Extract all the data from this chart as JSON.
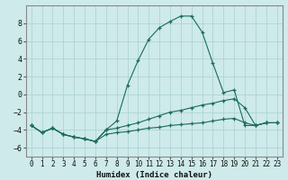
{
  "xlabel": "Humidex (Indice chaleur)",
  "bg_color": "#ceeaea",
  "grid_color": "#aed4d4",
  "line_color": "#1a6b5a",
  "xlim": [
    -0.5,
    23.5
  ],
  "ylim": [
    -7,
    10
  ],
  "yticks": [
    -6,
    -4,
    -2,
    0,
    2,
    4,
    6,
    8
  ],
  "xtick_labels": [
    "0",
    "1",
    "2",
    "3",
    "4",
    "5",
    "6",
    "7",
    "8",
    "9",
    "10",
    "11",
    "12",
    "13",
    "14",
    "15",
    "16",
    "17",
    "18",
    "19",
    "20",
    "21",
    "22",
    "23"
  ],
  "series": [
    {
      "x": [
        0,
        1,
        2,
        3,
        4,
        5,
        6,
        7,
        8,
        9,
        10,
        11,
        12,
        13,
        14,
        15,
        16,
        17,
        18,
        19,
        20,
        21,
        22,
        23
      ],
      "y": [
        -3.5,
        -4.3,
        -3.8,
        -4.5,
        -4.8,
        -5.0,
        -5.3,
        -4.0,
        -3.0,
        1.0,
        3.8,
        6.2,
        7.5,
        8.2,
        8.8,
        8.8,
        7.0,
        3.5,
        0.2,
        0.5,
        -3.5,
        -3.5,
        -3.2,
        -3.2
      ]
    },
    {
      "x": [
        0,
        1,
        2,
        3,
        4,
        5,
        6,
        7,
        8,
        9,
        10,
        11,
        12,
        13,
        14,
        15,
        16,
        17,
        18,
        19,
        20,
        21,
        22,
        23
      ],
      "y": [
        -3.5,
        -4.3,
        -3.8,
        -4.5,
        -4.8,
        -5.0,
        -5.3,
        -4.0,
        -3.8,
        -3.5,
        -3.2,
        -2.8,
        -2.4,
        -2.0,
        -1.8,
        -1.5,
        -1.2,
        -1.0,
        -0.7,
        -0.5,
        -1.5,
        -3.5,
        -3.2,
        -3.2
      ]
    },
    {
      "x": [
        0,
        1,
        2,
        3,
        4,
        5,
        6,
        7,
        8,
        9,
        10,
        11,
        12,
        13,
        14,
        15,
        16,
        17,
        18,
        19,
        20,
        21,
        22,
        23
      ],
      "y": [
        -3.5,
        -4.3,
        -3.8,
        -4.5,
        -4.8,
        -5.0,
        -5.3,
        -4.5,
        -4.3,
        -4.2,
        -4.0,
        -3.8,
        -3.7,
        -3.5,
        -3.4,
        -3.3,
        -3.2,
        -3.0,
        -2.8,
        -2.7,
        -3.2,
        -3.5,
        -3.2,
        -3.2
      ]
    }
  ]
}
